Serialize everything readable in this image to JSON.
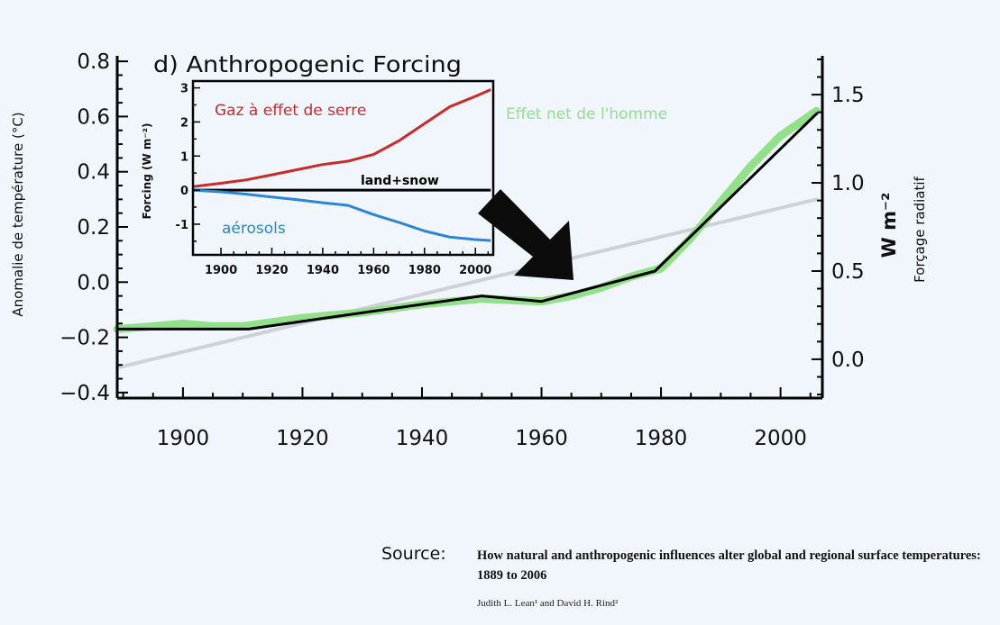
{
  "chart_data": [
    {
      "type": "line",
      "y_left_label": "Anomalie de température (°C)",
      "y_right_label": "Forçage radiatif",
      "y_right_units": "W m⁻²",
      "x_ticks": [
        "1900",
        "1920",
        "1940",
        "1960",
        "1980",
        "2000"
      ],
      "xlim": [
        1889,
        2007
      ],
      "y_left_ticks": [
        "0.8",
        "0.6",
        "0.4",
        "0.2",
        "0.0",
        "−0.2",
        "−0.4"
      ],
      "y_left_tick_values": [
        0.8,
        0.6,
        0.4,
        0.2,
        0.0,
        -0.2,
        -0.4
      ],
      "ylim_left": [
        -0.42,
        0.82
      ],
      "y_right_ticks": [
        "1.5",
        "1.0",
        "0.5",
        "0.0"
      ],
      "y_right_tick_values": [
        1.5,
        1.0,
        0.5,
        0.0
      ],
      "ylim_right": [
        -0.22,
        1.72
      ],
      "series": [
        {
          "name": "Effet net de l'homme",
          "color": "#93e08a",
          "x": [
            1889,
            1895,
            1900,
            1905,
            1910,
            1920,
            1930,
            1940,
            1950,
            1955,
            1960,
            1965,
            1970,
            1975,
            1980,
            1985,
            1990,
            1995,
            2000,
            2006
          ],
          "y": [
            -0.17,
            -0.16,
            -0.15,
            -0.16,
            -0.16,
            -0.13,
            -0.11,
            -0.08,
            -0.06,
            -0.065,
            -0.07,
            -0.05,
            -0.02,
            0.02,
            0.05,
            0.16,
            0.29,
            0.42,
            0.53,
            0.62
          ]
        },
        {
          "name": "",
          "color": "#000000",
          "x": [
            1889,
            1911,
            1927,
            1950,
            1960,
            1979,
            2006
          ],
          "y": [
            -0.17,
            -0.17,
            -0.12,
            -0.05,
            -0.07,
            0.04,
            0.61
          ]
        },
        {
          "name": "",
          "color": "#cdd1d8",
          "x": [
            1889,
            2006
          ],
          "y": [
            -0.31,
            0.3
          ]
        }
      ]
    },
    {
      "type": "line",
      "title": "d) Anthropogenic Forcing",
      "ylabel": "Forcing (W m⁻²)",
      "x_ticks": [
        "1900",
        "1920",
        "1940",
        "1960",
        "1980",
        "2000"
      ],
      "xlim": [
        1889,
        2007
      ],
      "y_ticks": [
        "3",
        "2",
        "1",
        "0",
        "-1"
      ],
      "y_tick_values": [
        3,
        2,
        1,
        0,
        -1
      ],
      "ylim": [
        -1.9,
        3.2
      ],
      "series": [
        {
          "name": "Gaz à effet de serre",
          "color": "#cc2a2a",
          "x": [
            1889,
            1900,
            1910,
            1920,
            1930,
            1940,
            1950,
            1960,
            1970,
            1980,
            1990,
            2000,
            2006
          ],
          "y": [
            0.1,
            0.2,
            0.3,
            0.45,
            0.6,
            0.75,
            0.85,
            1.05,
            1.45,
            1.95,
            2.45,
            2.75,
            2.95
          ]
        },
        {
          "name": "land+snow",
          "color": "#000000",
          "x": [
            1889,
            2006
          ],
          "y": [
            0.0,
            0.0
          ]
        },
        {
          "name": "aérosols",
          "color": "#2b86d8",
          "x": [
            1889,
            1900,
            1910,
            1920,
            1930,
            1940,
            1950,
            1960,
            1970,
            1980,
            1990,
            2000,
            2006
          ],
          "y": [
            0.0,
            -0.05,
            -0.12,
            -0.2,
            -0.28,
            -0.37,
            -0.45,
            -0.72,
            -0.95,
            -1.2,
            -1.38,
            -1.45,
            -1.48
          ]
        }
      ]
    }
  ],
  "source": {
    "label": "Source:",
    "title": "How natural and anthropogenic influences alter global and regional surface temperatures: 1889 to 2006",
    "authors": "Judith L. Lean¹ and David H. Rind²"
  },
  "arrow_icon": "arrow-down-right-icon"
}
